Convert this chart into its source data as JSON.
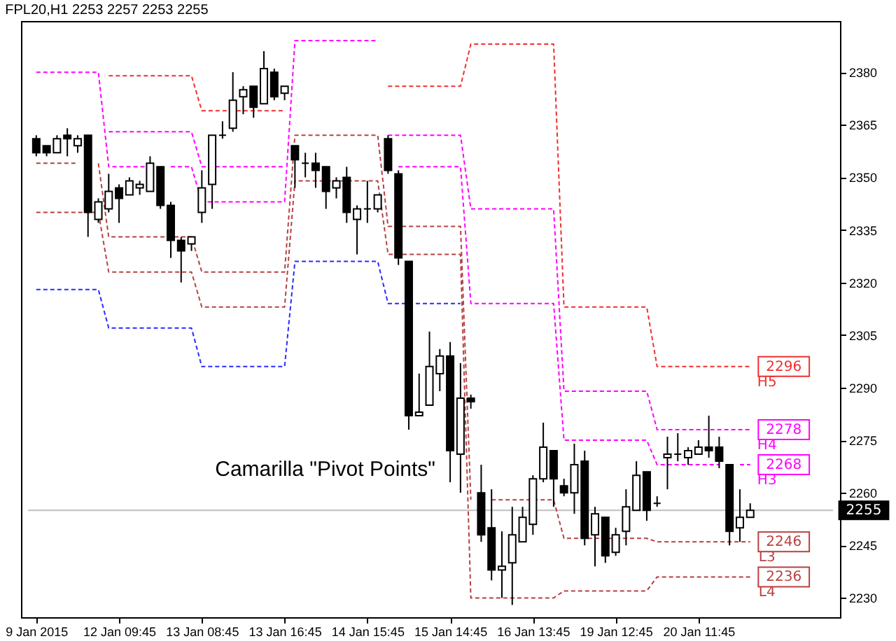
{
  "chart_data": {
    "type": "candlestick",
    "title": "FPL20,H1  2253 2257 2253 2255",
    "categories": [
      "9 Jan 2015",
      null,
      null,
      null,
      null,
      null,
      null,
      null,
      "12 Jan 09:45",
      null,
      null,
      null,
      null,
      null,
      null,
      null,
      "13 Jan 08:45",
      null,
      null,
      null,
      null,
      null,
      null,
      null,
      "13 Jan 16:45",
      null,
      null,
      null,
      null,
      null,
      null,
      null,
      "14 Jan 15:45",
      null,
      null,
      null,
      null,
      null,
      null,
      null,
      "15 Jan 14:45",
      null,
      null,
      null,
      null,
      null,
      null,
      null,
      "16 Jan 13:45",
      null,
      null,
      null,
      null,
      null,
      null,
      null,
      "19 Jan 12:45",
      null,
      null,
      null,
      null,
      null,
      null,
      null,
      "20 Jan 11:45",
      null,
      null,
      null,
      null,
      null
    ],
    "ohlc": [
      [
        2361,
        2362,
        2356,
        2357
      ],
      [
        2359,
        2359,
        2356,
        2357
      ],
      [
        2357,
        2362,
        2357,
        2361
      ],
      [
        2362,
        2364,
        2356,
        2361
      ],
      [
        2359,
        2362,
        2357,
        2361
      ],
      [
        2362,
        2362,
        2333,
        2340
      ],
      [
        2338,
        2344,
        2337,
        2343
      ],
      [
        2341,
        2351,
        2340,
        2346
      ],
      [
        2347,
        2348,
        2337,
        2344
      ],
      [
        2345,
        2350,
        2345,
        2349
      ],
      [
        2347,
        2349,
        2345,
        2348
      ],
      [
        2346,
        2356,
        2346,
        2354
      ],
      [
        2353,
        2353,
        2341,
        2342
      ],
      [
        2342,
        2343,
        2327,
        2332
      ],
      [
        2332,
        2333,
        2320,
        2329
      ],
      [
        2331,
        2333,
        2329,
        2333
      ],
      [
        2340,
        2352,
        2337,
        2347
      ],
      [
        2348,
        2362,
        2341,
        2362
      ],
      [
        2362,
        2366,
        2361,
        2362
      ],
      [
        2364,
        2380,
        2363,
        2372
      ],
      [
        2373,
        2376,
        2368,
        2375
      ],
      [
        2376,
        2376,
        2367,
        2370
      ],
      [
        2371,
        2386,
        2371,
        2381
      ],
      [
        2380,
        2381,
        2372,
        2373
      ],
      [
        2374,
        2376,
        2372,
        2376
      ],
      [
        2359,
        2359,
        2347,
        2355
      ],
      [
        2354,
        2357,
        2350,
        2354
      ],
      [
        2354,
        2357,
        2347,
        2352
      ],
      [
        2353,
        2353,
        2341,
        2346
      ],
      [
        2347,
        2350,
        2344,
        2349
      ],
      [
        2350,
        2353,
        2337,
        2340
      ],
      [
        2338,
        2342,
        2328,
        2341
      ],
      [
        2341,
        2349,
        2337,
        2341
      ],
      [
        2341,
        2345,
        2340,
        2345
      ],
      [
        2361,
        2362,
        2351,
        2352
      ],
      [
        2351,
        2352,
        2325,
        2327
      ],
      [
        2326,
        2326,
        2278,
        2282
      ],
      [
        2282,
        2294,
        2282,
        2283
      ],
      [
        2285,
        2306,
        2285,
        2296
      ],
      [
        2294,
        2301,
        2289,
        2299
      ],
      [
        2299,
        2303,
        2263,
        2272
      ],
      [
        2271,
        2297,
        2260,
        2287
      ],
      [
        2287,
        2288,
        2284,
        2286
      ],
      [
        2260,
        2268,
        2246,
        2248
      ],
      [
        2250,
        2261,
        2235,
        2238
      ],
      [
        2238,
        2249,
        2230,
        2239
      ],
      [
        2240,
        2256,
        2228,
        2248
      ],
      [
        2246,
        2256,
        2246,
        2253
      ],
      [
        2251,
        2265,
        2248,
        2264
      ],
      [
        2264,
        2280,
        2263,
        2273
      ],
      [
        2272,
        2272,
        2256,
        2264
      ],
      [
        2262,
        2264,
        2259,
        2260
      ],
      [
        2260,
        2274,
        2254,
        2268
      ],
      [
        2269,
        2272,
        2245,
        2247
      ],
      [
        2248,
        2256,
        2239,
        2254
      ],
      [
        2253,
        2253,
        2240,
        2242
      ],
      [
        2243,
        2250,
        2242,
        2248
      ],
      [
        2249,
        2261,
        2245,
        2256
      ],
      [
        2255,
        2269,
        2255,
        2265
      ],
      [
        2266,
        2266,
        2252,
        2255
      ],
      [
        2257,
        2259,
        2256,
        2257
      ],
      [
        2270,
        2276,
        2261,
        2271
      ],
      [
        2271,
        2277,
        2269,
        2271
      ],
      [
        2270,
        2273,
        2268,
        2272
      ],
      [
        2271,
        2275,
        2271,
        2273
      ],
      [
        2273,
        2282,
        2270,
        2272
      ],
      [
        2273,
        2276,
        2267,
        2269
      ],
      [
        2268,
        2268,
        2245,
        2249
      ],
      [
        2250,
        2261,
        2246,
        2253
      ],
      [
        2253,
        2257,
        2253,
        2255
      ]
    ],
    "series": [
      {
        "name": "H5",
        "type": "line",
        "color": "#ee3030",
        "values": [
          null,
          null,
          null,
          null,
          null,
          null,
          null,
          2379,
          2379,
          2379,
          2379,
          2379,
          2379,
          2379,
          2379,
          2379,
          2369,
          2369,
          2369,
          2369,
          2369,
          2369,
          2369,
          2369,
          2369,
          null,
          null,
          null,
          null,
          null,
          null,
          null,
          null,
          null,
          2376,
          2376,
          2376,
          2376,
          2376,
          2376,
          2376,
          2376,
          2388,
          2388,
          2388,
          2388,
          2388,
          2388,
          2388,
          2388,
          2388,
          2313,
          2313,
          2313,
          2313,
          2313,
          2313,
          2313,
          2313,
          2313,
          2296,
          2296,
          2296,
          2296,
          2296,
          2296,
          2296,
          2296,
          2296,
          2296
        ],
        "value_labels": [
          null,
          null,
          null,
          null,
          null,
          null,
          null,
          null,
          null,
          null,
          null,
          null,
          null,
          null,
          null,
          null,
          null,
          null,
          null,
          null,
          null,
          null,
          null,
          null,
          null,
          null,
          null,
          null,
          null,
          null,
          null,
          null,
          null,
          null,
          null,
          null,
          null,
          null,
          null,
          null,
          null,
          null,
          null,
          null,
          null,
          null,
          null,
          null,
          null,
          null,
          null,
          null,
          null,
          null,
          null,
          null,
          null,
          null,
          null,
          null,
          null,
          null,
          null,
          null,
          null,
          null,
          null,
          null,
          null,
          "2296"
        ]
      },
      {
        "name": "H4",
        "type": "line",
        "color": "#ff00ff",
        "values": [
          null,
          null,
          null,
          null,
          null,
          null,
          null,
          2363,
          2363,
          2363,
          2363,
          2363,
          2363,
          2363,
          2363,
          2363,
          2353,
          2353,
          2353,
          2353,
          2353,
          2353,
          2353,
          2353,
          2353,
          null,
          null,
          null,
          null,
          null,
          null,
          null,
          null,
          null,
          2362,
          2362,
          2362,
          2362,
          2362,
          2362,
          2362,
          2362,
          2341,
          2341,
          2341,
          2341,
          2341,
          2341,
          2341,
          2341,
          2341,
          2289,
          2289,
          2289,
          2289,
          2289,
          2289,
          2289,
          2289,
          2289,
          2278,
          2278,
          2278,
          2278,
          2278,
          2278,
          2278,
          2278,
          2278,
          2278
        ],
        "value_labels": [
          null,
          null,
          null,
          null,
          null,
          null,
          null,
          null,
          null,
          null,
          null,
          null,
          null,
          null,
          null,
          null,
          null,
          null,
          null,
          null,
          null,
          null,
          null,
          null,
          null,
          null,
          null,
          null,
          null,
          null,
          null,
          null,
          null,
          null,
          null,
          null,
          null,
          null,
          null,
          null,
          null,
          null,
          null,
          null,
          null,
          null,
          null,
          null,
          null,
          null,
          null,
          null,
          null,
          null,
          null,
          null,
          null,
          null,
          null,
          null,
          null,
          null,
          null,
          null,
          null,
          null,
          null,
          null,
          null,
          "2278"
        ]
      },
      {
        "name": "H3",
        "type": "line",
        "color": "#ff00ff",
        "values": [
          2380,
          2380,
          2380,
          2380,
          2380,
          2380,
          2380,
          2353,
          2353,
          2353,
          2353,
          2353,
          null,
          2353,
          2353,
          2353,
          2343,
          2343,
          2343,
          2343,
          2343,
          2343,
          2343,
          2343,
          2343,
          2389,
          2389,
          2389,
          2389,
          2389,
          2389,
          2389,
          2389,
          2389,
          null,
          2353,
          2353,
          2353,
          2353,
          2353,
          2353,
          2353,
          2314,
          2314,
          2314,
          2314,
          2314,
          2314,
          2314,
          2314,
          2314,
          2275,
          2275,
          2275,
          2275,
          2275,
          2275,
          2275,
          2275,
          2275,
          2268,
          2268,
          2268,
          2268,
          2268,
          2268,
          2268,
          null,
          2268,
          2268
        ],
        "value_labels": [
          null,
          null,
          null,
          null,
          null,
          null,
          null,
          null,
          null,
          null,
          null,
          null,
          null,
          null,
          null,
          null,
          null,
          null,
          null,
          null,
          null,
          null,
          null,
          null,
          null,
          null,
          null,
          null,
          null,
          null,
          null,
          null,
          null,
          null,
          null,
          null,
          null,
          null,
          null,
          null,
          null,
          null,
          null,
          null,
          null,
          null,
          null,
          null,
          null,
          null,
          null,
          null,
          null,
          null,
          null,
          null,
          null,
          null,
          null,
          null,
          null,
          null,
          null,
          null,
          null,
          null,
          null,
          null,
          null,
          "2268"
        ]
      },
      {
        "name": "L3",
        "type": "line",
        "color": "#b84040",
        "values": [
          2354,
          2354,
          2354,
          2354,
          2354,
          null,
          2354,
          2333,
          2333,
          2333,
          2333,
          2333,
          2333,
          2333,
          2333,
          2333,
          2323,
          2323,
          2323,
          2323,
          2323,
          2323,
          2323,
          2323,
          2323,
          2362,
          2362,
          2362,
          2362,
          2362,
          2362,
          2362,
          2362,
          2362,
          2336,
          2336,
          2336,
          2336,
          2336,
          2336,
          2336,
          2336,
          2258,
          null,
          2258,
          2258,
          2258,
          2258,
          2258,
          2258,
          2258,
          2247,
          2247,
          2247,
          2247,
          2247,
          2247,
          2247,
          2247,
          2247,
          2246,
          2246,
          2246,
          2246,
          2246,
          2246,
          2246,
          2246,
          2246,
          2246
        ],
        "value_labels": [
          null,
          null,
          null,
          null,
          null,
          null,
          null,
          null,
          null,
          null,
          null,
          null,
          null,
          null,
          null,
          null,
          null,
          null,
          null,
          null,
          null,
          null,
          null,
          null,
          null,
          null,
          null,
          null,
          null,
          null,
          null,
          null,
          null,
          null,
          null,
          null,
          null,
          null,
          null,
          null,
          null,
          null,
          null,
          null,
          null,
          null,
          null,
          null,
          null,
          null,
          null,
          null,
          null,
          null,
          null,
          null,
          null,
          null,
          null,
          null,
          null,
          null,
          null,
          null,
          null,
          null,
          null,
          null,
          null,
          "2246"
        ]
      },
      {
        "name": "L4",
        "type": "line",
        "color": "#b84040",
        "values": [
          2340,
          2340,
          2340,
          2340,
          2340,
          2340,
          2340,
          2323,
          2323,
          2323,
          2323,
          2323,
          2323,
          2323,
          2323,
          2323,
          2313,
          2313,
          2313,
          2313,
          2313,
          2313,
          2313,
          2313,
          2313,
          2349,
          2349,
          2349,
          2349,
          2349,
          2349,
          2349,
          2349,
          2349,
          2328,
          2328,
          2328,
          2328,
          2328,
          2328,
          2328,
          2328,
          2230,
          2230,
          2230,
          2230,
          2230,
          2230,
          2230,
          2230,
          2230,
          2232,
          2232,
          2232,
          2232,
          2232,
          2232,
          2232,
          2232,
          2232,
          2236,
          2236,
          2236,
          2236,
          2236,
          2236,
          2236,
          2236,
          2236,
          2236
        ],
        "value_labels": [
          null,
          null,
          null,
          null,
          null,
          null,
          null,
          null,
          null,
          null,
          null,
          null,
          null,
          null,
          null,
          null,
          null,
          null,
          null,
          null,
          null,
          null,
          null,
          null,
          null,
          null,
          null,
          null,
          null,
          null,
          null,
          null,
          null,
          null,
          null,
          null,
          null,
          null,
          null,
          null,
          null,
          null,
          null,
          null,
          null,
          null,
          null,
          null,
          null,
          null,
          null,
          null,
          null,
          null,
          null,
          null,
          null,
          null,
          null,
          null,
          null,
          null,
          null,
          null,
          null,
          null,
          null,
          null,
          null,
          "2236"
        ]
      },
      {
        "type": "line",
        "color": "#2a2aff",
        "values": [
          2318,
          2318,
          2318,
          2318,
          2318,
          2318,
          2318,
          2307,
          2307,
          2307,
          2307,
          2307,
          2307,
          2307,
          2307,
          2307,
          2296,
          2296,
          2296,
          2296,
          2296,
          2296,
          2296,
          2296,
          2296,
          2326,
          2326,
          2326,
          2326,
          2326,
          2326,
          2326,
          2326,
          2326,
          2314,
          2314,
          2314,
          2314,
          2314,
          2314,
          2314,
          2314,
          null,
          null,
          null,
          null,
          null,
          null,
          null,
          null,
          null,
          null,
          null,
          null,
          null,
          null,
          null,
          null,
          null,
          null,
          null,
          null,
          null,
          null,
          null,
          null,
          null,
          null,
          null,
          null
        ]
      }
    ],
    "line_style": "dashed",
    "marker": "none",
    "ylim": [
      2224.5,
      2394.6
    ],
    "yticks": [
      2230,
      2245,
      2260,
      2275,
      2290,
      2305,
      2320,
      2335,
      2350,
      2365,
      2380
    ],
    "ref_lines": [
      {
        "axis": "y",
        "value": 2255,
        "label": "2255",
        "color": "#c0c0c0"
      }
    ],
    "annotations": [
      "Camarilla \"Pivot Points\""
    ],
    "grid": false,
    "legend": "right"
  }
}
